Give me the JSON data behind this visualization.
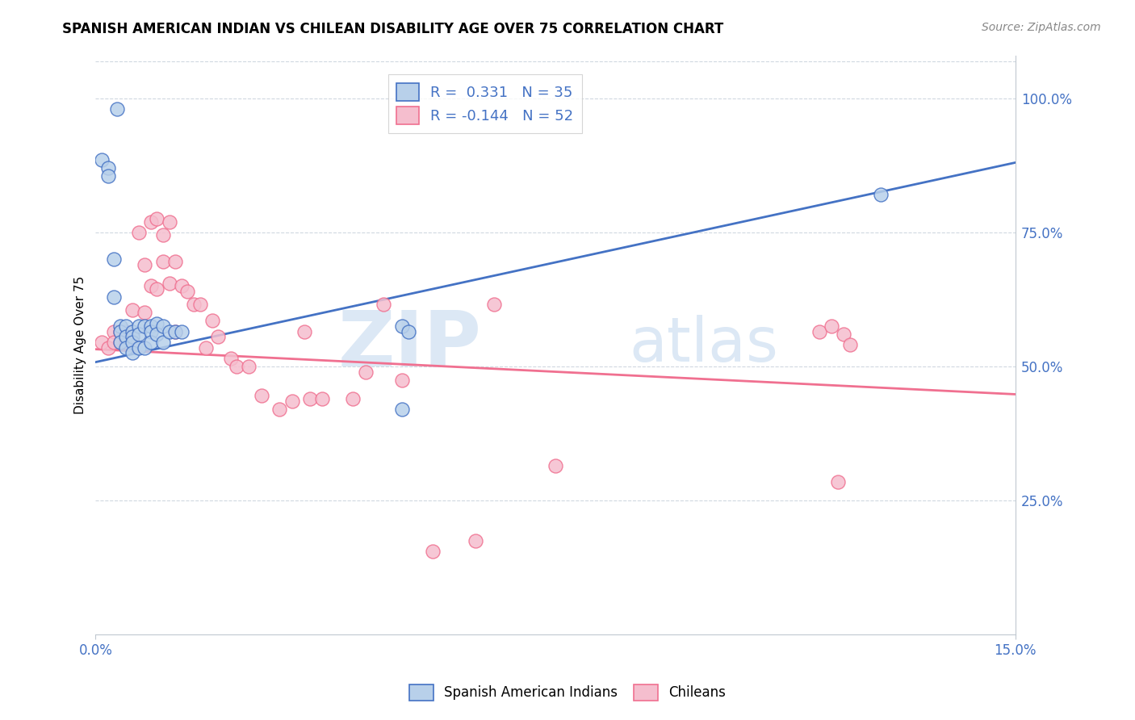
{
  "title": "SPANISH AMERICAN INDIAN VS CHILEAN DISABILITY AGE OVER 75 CORRELATION CHART",
  "source": "Source: ZipAtlas.com",
  "ylabel": "Disability Age Over 75",
  "xlim": [
    0.0,
    0.15
  ],
  "ylim": [
    0.0,
    1.08
  ],
  "ytick_labels_right": [
    "100.0%",
    "75.0%",
    "50.0%",
    "25.0%"
  ],
  "ytick_vals_right": [
    1.0,
    0.75,
    0.5,
    0.25
  ],
  "blue_r": 0.331,
  "blue_n": 35,
  "pink_r": -0.144,
  "pink_n": 52,
  "blue_color": "#b8d0ea",
  "pink_color": "#f5bece",
  "blue_line_color": "#4472C4",
  "pink_line_color": "#F07090",
  "watermark_zip": "ZIP",
  "watermark_atlas": "atlas",
  "watermark_color": "#dce8f5",
  "blue_x": [
    0.0035,
    0.001,
    0.002,
    0.002,
    0.003,
    0.003,
    0.004,
    0.004,
    0.004,
    0.005,
    0.005,
    0.005,
    0.006,
    0.006,
    0.006,
    0.006,
    0.007,
    0.007,
    0.007,
    0.008,
    0.008,
    0.009,
    0.009,
    0.009,
    0.01,
    0.01,
    0.011,
    0.011,
    0.012,
    0.013,
    0.014,
    0.05,
    0.051,
    0.128,
    0.05
  ],
  "blue_y": [
    0.98,
    0.885,
    0.87,
    0.855,
    0.7,
    0.63,
    0.575,
    0.565,
    0.545,
    0.575,
    0.555,
    0.535,
    0.565,
    0.555,
    0.545,
    0.525,
    0.575,
    0.56,
    0.535,
    0.575,
    0.535,
    0.575,
    0.565,
    0.545,
    0.58,
    0.56,
    0.575,
    0.545,
    0.565,
    0.565,
    0.565,
    0.575,
    0.565,
    0.82,
    0.42
  ],
  "pink_x": [
    0.001,
    0.002,
    0.003,
    0.003,
    0.004,
    0.004,
    0.005,
    0.005,
    0.006,
    0.006,
    0.007,
    0.008,
    0.008,
    0.009,
    0.009,
    0.01,
    0.01,
    0.011,
    0.011,
    0.012,
    0.012,
    0.013,
    0.013,
    0.014,
    0.015,
    0.016,
    0.017,
    0.018,
    0.019,
    0.02,
    0.022,
    0.023,
    0.025,
    0.027,
    0.03,
    0.032,
    0.034,
    0.035,
    0.037,
    0.042,
    0.044,
    0.047,
    0.05,
    0.055,
    0.062,
    0.065,
    0.075,
    0.118,
    0.12,
    0.121,
    0.122,
    0.123
  ],
  "pink_y": [
    0.545,
    0.535,
    0.565,
    0.545,
    0.565,
    0.545,
    0.565,
    0.545,
    0.605,
    0.545,
    0.75,
    0.69,
    0.6,
    0.77,
    0.65,
    0.775,
    0.645,
    0.745,
    0.695,
    0.77,
    0.655,
    0.695,
    0.565,
    0.65,
    0.64,
    0.615,
    0.615,
    0.535,
    0.585,
    0.555,
    0.515,
    0.5,
    0.5,
    0.445,
    0.42,
    0.435,
    0.565,
    0.44,
    0.44,
    0.44,
    0.49,
    0.615,
    0.475,
    0.155,
    0.175,
    0.615,
    0.315,
    0.565,
    0.575,
    0.285,
    0.56,
    0.54
  ],
  "blue_trend": [
    0.508,
    0.88
  ],
  "pink_trend": [
    0.532,
    0.448
  ],
  "grid_color": "#d0d8e0",
  "spine_color": "#c0c8d0",
  "tick_color": "#4472C4",
  "title_fontsize": 12,
  "axis_label_fontsize": 11,
  "tick_fontsize": 12,
  "legend_fontsize": 13
}
